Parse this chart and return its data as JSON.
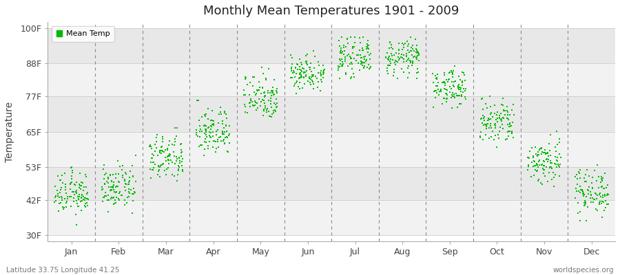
{
  "title": "Monthly Mean Temperatures 1901 - 2009",
  "ylabel": "Temperature",
  "xlabel_bottom_left": "Latitude 33.75 Longitude 41.25",
  "xlabel_bottom_right": "worldspecies.org",
  "legend_label": "Mean Temp",
  "ytick_labels": [
    "30F",
    "42F",
    "53F",
    "65F",
    "77F",
    "88F",
    "100F"
  ],
  "ytick_values": [
    30,
    42,
    53,
    65,
    77,
    88,
    100
  ],
  "ylim": [
    28,
    102
  ],
  "months": [
    "Jan",
    "Feb",
    "Mar",
    "Apr",
    "May",
    "Jun",
    "Jul",
    "Aug",
    "Sep",
    "Oct",
    "Nov",
    "Dec"
  ],
  "dot_color": "#00bb00",
  "bg_color": "#ffffff",
  "plot_bg_color": "#ffffff",
  "band_colors": [
    "#f2f2f2",
    "#e8e8e8"
  ],
  "n_years": 109,
  "monthly_mean_temps_F": [
    44,
    46,
    56,
    65,
    77,
    85,
    90,
    90,
    80,
    68,
    55,
    45
  ],
  "monthly_std_F": [
    3.5,
    3.5,
    4,
    4,
    4,
    3,
    3,
    3,
    3,
    4,
    4,
    4
  ],
  "monthly_min_F": [
    33,
    35,
    45,
    55,
    68,
    78,
    83,
    83,
    73,
    58,
    44,
    35
  ],
  "monthly_max_F": [
    55,
    57,
    67,
    77,
    87,
    94,
    97,
    97,
    88,
    79,
    66,
    56
  ]
}
